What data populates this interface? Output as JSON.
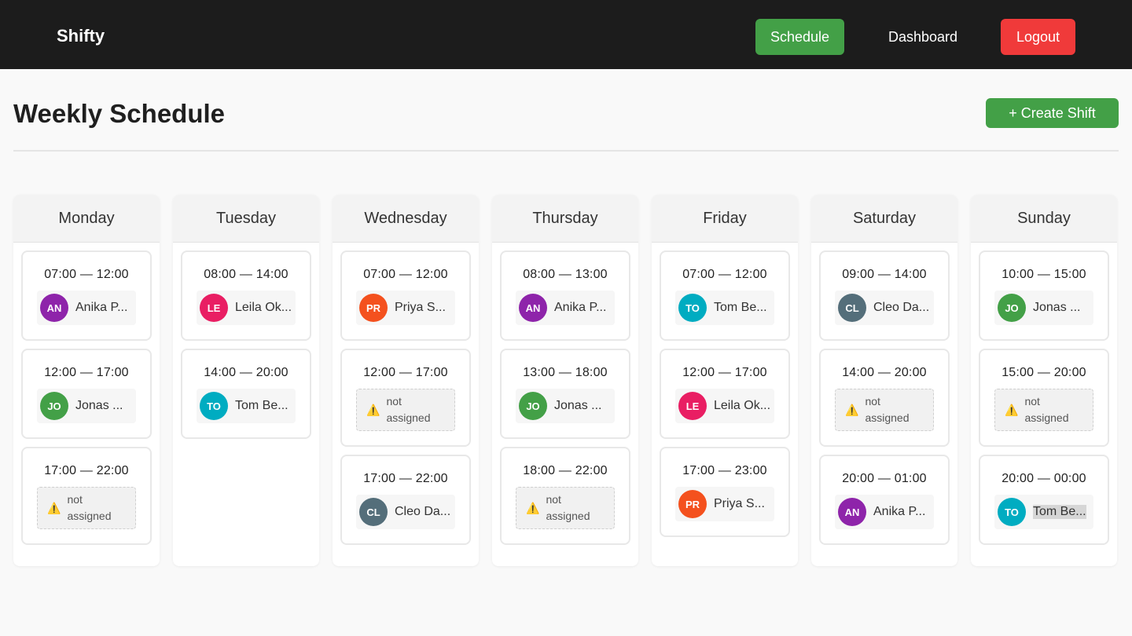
{
  "nav": {
    "brand": "Shifty",
    "schedule": "Schedule",
    "dashboard": "Dashboard",
    "logout": "Logout"
  },
  "page": {
    "title": "Weekly Schedule",
    "create_button": "+ Create Shift"
  },
  "unassigned_label": "not assigned",
  "colors": {
    "green": "#43a047",
    "red": "#f03a3a",
    "avatar_an": "#8e24aa",
    "avatar_jo": "#43a047",
    "avatar_le": "#e91e63",
    "avatar_pr": "#f4511e",
    "avatar_to": "#00acc1",
    "avatar_cl": "#546e7a"
  },
  "days": [
    {
      "name": "Monday",
      "shifts": [
        {
          "time": "07:00 — 12:00",
          "initials": "AN",
          "name": "Anika P...",
          "color": "#8e24aa"
        },
        {
          "time": "12:00 — 17:00",
          "initials": "JO",
          "name": "Jonas ...",
          "color": "#43a047"
        },
        {
          "time": "17:00 — 22:00",
          "unassigned": true
        }
      ]
    },
    {
      "name": "Tuesday",
      "shifts": [
        {
          "time": "08:00 — 14:00",
          "initials": "LE",
          "name": "Leila Ok...",
          "color": "#e91e63"
        },
        {
          "time": "14:00 — 20:00",
          "initials": "TO",
          "name": "Tom Be...",
          "color": "#00acc1"
        }
      ]
    },
    {
      "name": "Wednesday",
      "shifts": [
        {
          "time": "07:00 — 12:00",
          "initials": "PR",
          "name": "Priya S...",
          "color": "#f4511e"
        },
        {
          "time": "12:00 — 17:00",
          "unassigned": true
        },
        {
          "time": "17:00 — 22:00",
          "initials": "CL",
          "name": "Cleo Da...",
          "color": "#546e7a"
        }
      ]
    },
    {
      "name": "Thursday",
      "shifts": [
        {
          "time": "08:00 — 13:00",
          "initials": "AN",
          "name": "Anika P...",
          "color": "#8e24aa"
        },
        {
          "time": "13:00 — 18:00",
          "initials": "JO",
          "name": "Jonas ...",
          "color": "#43a047"
        },
        {
          "time": "18:00 — 22:00",
          "unassigned": true
        }
      ]
    },
    {
      "name": "Friday",
      "shifts": [
        {
          "time": "07:00 — 12:00",
          "initials": "TO",
          "name": "Tom Be...",
          "color": "#00acc1"
        },
        {
          "time": "12:00 — 17:00",
          "initials": "LE",
          "name": "Leila Ok...",
          "color": "#e91e63"
        },
        {
          "time": "17:00 — 23:00",
          "initials": "PR",
          "name": "Priya S...",
          "color": "#f4511e"
        }
      ]
    },
    {
      "name": "Saturday",
      "shifts": [
        {
          "time": "09:00 — 14:00",
          "initials": "CL",
          "name": "Cleo Da...",
          "color": "#546e7a"
        },
        {
          "time": "14:00 — 20:00",
          "unassigned": true
        },
        {
          "time": "20:00 — 01:00",
          "initials": "AN",
          "name": "Anika P...",
          "color": "#8e24aa"
        }
      ]
    },
    {
      "name": "Sunday",
      "shifts": [
        {
          "time": "10:00 — 15:00",
          "initials": "JO",
          "name": "Jonas ...",
          "color": "#43a047"
        },
        {
          "time": "15:00 — 20:00",
          "unassigned": true
        },
        {
          "time": "20:00 — 00:00",
          "initials": "TO",
          "name": "Tom Be...",
          "color": "#00acc1",
          "selected_text": true
        }
      ]
    }
  ]
}
